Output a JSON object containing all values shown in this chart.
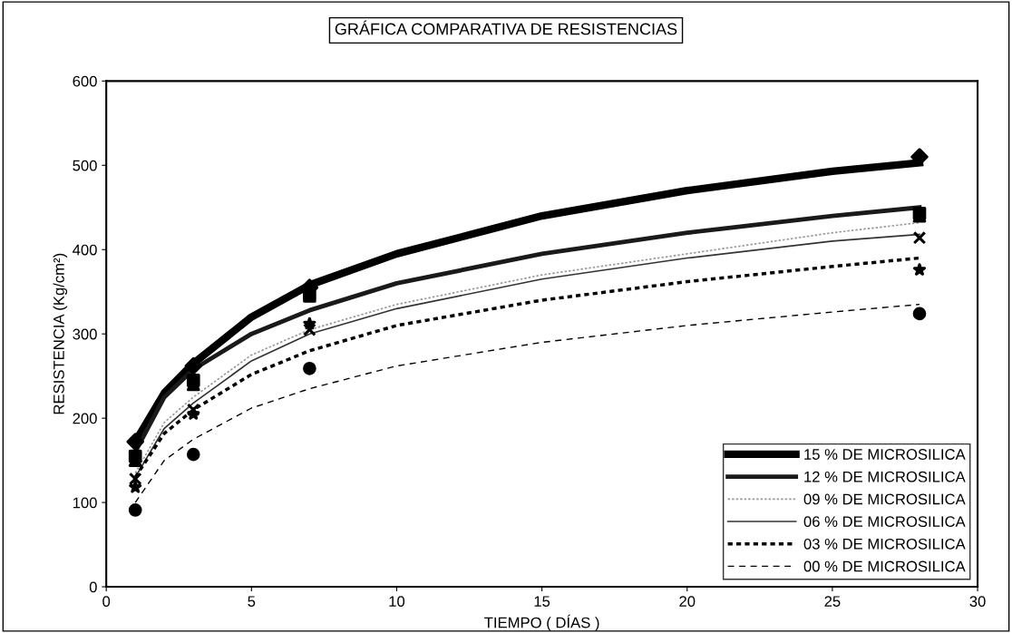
{
  "chart_data": {
    "type": "scatter",
    "title": "GRÁFICA COMPARATIVA DE RESISTENCIAS",
    "xlabel": "TIEMPO ( DÍAS )",
    "ylabel": "RESISTENCIA (Kg/cm²)",
    "xlim": [
      0,
      30
    ],
    "xticks": [
      0,
      5,
      10,
      15,
      20,
      25,
      30
    ],
    "ylim": [
      0,
      600
    ],
    "yticks": [
      0,
      100,
      200,
      300,
      400,
      500,
      600
    ],
    "grid": false,
    "legend": "bottom right",
    "series": [
      {
        "marker": "diamond",
        "color": "#000000",
        "x": [
          1,
          3,
          7,
          28
        ],
        "values": [
          172,
          262,
          355,
          510
        ]
      },
      {
        "marker": "square",
        "color": "#000000",
        "x": [
          1,
          3,
          7,
          28
        ],
        "values": [
          155,
          245,
          347,
          443
        ]
      },
      {
        "marker": "triangle",
        "color": "#000000",
        "x": [
          1,
          3,
          7,
          28
        ],
        "values": [
          150,
          240,
          345,
          440
        ]
      },
      {
        "marker": "cross",
        "color": "#000000",
        "x": [
          1,
          3,
          7,
          28
        ],
        "values": [
          128,
          210,
          305,
          414
        ]
      },
      {
        "marker": "star",
        "color": "#000000",
        "x": [
          1,
          3,
          7,
          28
        ],
        "values": [
          118,
          205,
          312,
          376
        ]
      },
      {
        "marker": "circle",
        "color": "#000000",
        "x": [
          1,
          3,
          7,
          28
        ],
        "values": [
          91,
          157,
          259,
          324
        ]
      },
      {
        "type": "line",
        "name": "15 % DE MICROSILICA",
        "line_style": "solid",
        "color": "#000000",
        "x": [
          1,
          2,
          3,
          5,
          7,
          10,
          15,
          20,
          25,
          28
        ],
        "values": [
          172,
          230,
          265,
          320,
          358,
          395,
          440,
          470,
          493,
          503
        ]
      },
      {
        "type": "line",
        "name": "12 % DE MICROSILICA",
        "line_style": "solid",
        "color": "#1a1a1a",
        "x": [
          1,
          2,
          3,
          5,
          7,
          10,
          15,
          20,
          25,
          28
        ],
        "values": [
          160,
          225,
          258,
          300,
          328,
          360,
          395,
          420,
          440,
          450
        ]
      },
      {
        "type": "line",
        "name": "09 % DE MICROSILICA",
        "line_style": "dotted",
        "color": "#9a9a9a",
        "x": [
          1,
          2,
          3,
          5,
          7,
          10,
          15,
          20,
          25,
          28
        ],
        "values": [
          135,
          195,
          225,
          275,
          305,
          335,
          370,
          395,
          420,
          432
        ]
      },
      {
        "type": "line",
        "name": "06 % DE MICROSILICA",
        "line_style": "solid",
        "color": "#333333",
        "x": [
          1,
          2,
          3,
          5,
          7,
          10,
          15,
          20,
          25,
          28
        ],
        "values": [
          130,
          188,
          218,
          268,
          300,
          330,
          365,
          390,
          410,
          418
        ]
      },
      {
        "type": "line",
        "name": "03 % DE MICROSILICA",
        "line_style": "dotted",
        "color": "#000000",
        "x": [
          1,
          2,
          3,
          5,
          7,
          10,
          15,
          20,
          25,
          28
        ],
        "values": [
          130,
          182,
          210,
          252,
          280,
          310,
          340,
          362,
          380,
          390
        ]
      },
      {
        "type": "line",
        "name": "00 % DE MICROSILICA",
        "line_style": "dashed",
        "color": "#000000",
        "x": [
          1,
          2,
          3,
          5,
          7,
          10,
          15,
          20,
          25,
          28
        ],
        "values": [
          100,
          150,
          175,
          212,
          235,
          262,
          290,
          310,
          326,
          335
        ]
      }
    ]
  }
}
